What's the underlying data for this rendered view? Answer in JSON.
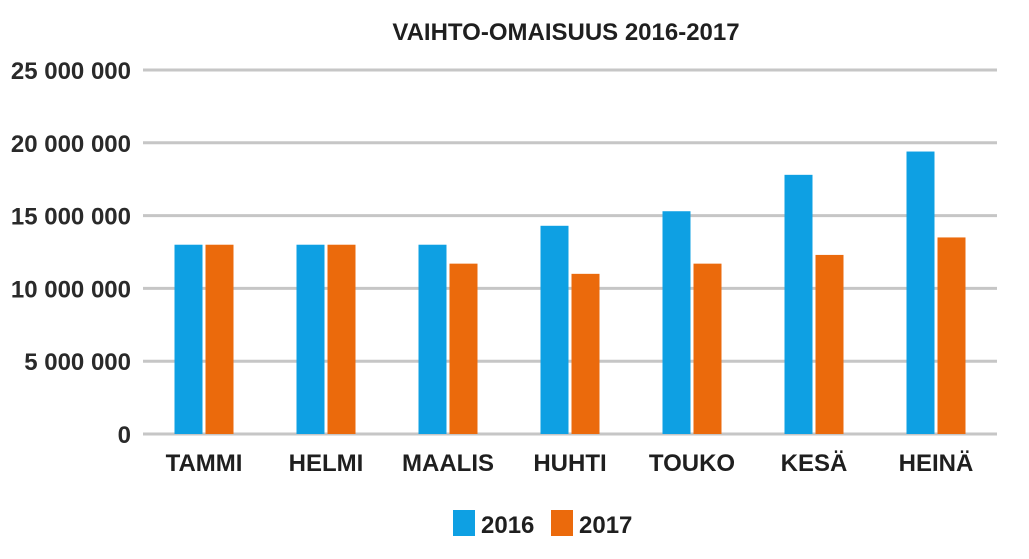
{
  "chart_data": {
    "type": "bar",
    "title": "VAIHTO-OMAISUUS 2016-2017",
    "xlabel": "",
    "ylabel": "",
    "categories": [
      "TAMMI",
      "HELMI",
      "MAALIS",
      "HUHTI",
      "TOUKO",
      "KESÄ",
      "HEINÄ"
    ],
    "series": [
      {
        "name": "2016",
        "color": "#0ea0e3",
        "values": [
          13000000,
          13000000,
          13000000,
          14300000,
          15300000,
          17800000,
          19400000
        ]
      },
      {
        "name": "2017",
        "color": "#eb6a0c",
        "values": [
          13000000,
          13000000,
          11700000,
          11000000,
          11700000,
          12300000,
          13500000
        ]
      }
    ],
    "ylim": [
      0,
      25000000
    ],
    "yticks": [
      0,
      5000000,
      10000000,
      15000000,
      20000000,
      25000000
    ],
    "ytick_labels": [
      "0",
      "5 000 000",
      "10 000 000",
      "15 000 000",
      "20 000 000",
      "25 000 000"
    ],
    "grid": true,
    "legend_position": "bottom-center"
  }
}
